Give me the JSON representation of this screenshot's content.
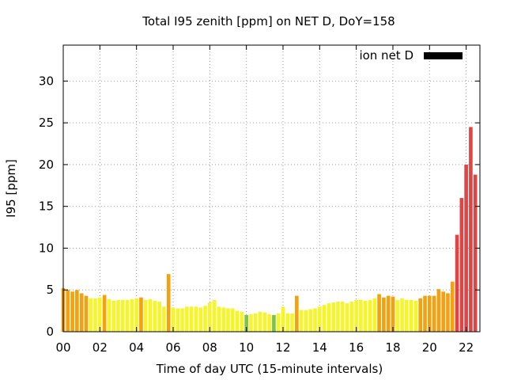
{
  "chart_data": {
    "type": "bar",
    "title": "Total I95 zenith [ppm] on NET D, DoY=158",
    "xlabel": "Time of day UTC (15-minute intervals)",
    "ylabel": "I95 [ppm]",
    "xlim": [
      0,
      22.75
    ],
    "ylim": [
      0,
      34.3
    ],
    "x_ticks": [
      "00",
      "02",
      "04",
      "06",
      "08",
      "10",
      "12",
      "14",
      "16",
      "18",
      "20",
      "22"
    ],
    "x_tick_values": [
      0,
      2,
      4,
      6,
      8,
      10,
      12,
      14,
      16,
      18,
      20,
      22
    ],
    "y_ticks": [
      0,
      5,
      10,
      15,
      20,
      25,
      30
    ],
    "grid": true,
    "legend_position": "top-right",
    "interval_hours": 0.25,
    "colors": {
      "green": "#7cc444",
      "yellow": "#f5f52a",
      "orange": "#f5a00f",
      "red": "#e04545",
      "legend": "#000000"
    },
    "series": [
      {
        "name": "ion net D",
        "values": [
          5.2,
          5.0,
          4.8,
          5.0,
          4.6,
          4.3,
          4.0,
          4.0,
          4.1,
          4.4,
          3.9,
          3.7,
          3.8,
          3.8,
          3.8,
          3.9,
          4.0,
          4.1,
          3.8,
          3.9,
          3.7,
          3.6,
          3.0,
          6.9,
          2.9,
          2.8,
          2.8,
          3.0,
          3.0,
          3.0,
          2.9,
          3.1,
          3.5,
          3.8,
          3.0,
          2.9,
          2.8,
          2.8,
          2.5,
          2.4,
          2.0,
          2.1,
          2.2,
          2.4,
          2.3,
          2.1,
          2.0,
          2.2,
          3.0,
          2.2,
          2.2,
          4.3,
          2.6,
          2.6,
          2.7,
          2.8,
          3.0,
          3.2,
          3.4,
          3.5,
          3.6,
          3.6,
          3.4,
          3.6,
          3.8,
          3.8,
          3.7,
          3.8,
          4.0,
          4.5,
          4.1,
          4.3,
          4.2,
          3.8,
          4.0,
          3.8,
          3.8,
          3.7,
          4.0,
          4.3,
          4.3,
          4.3,
          5.1,
          4.8,
          4.6,
          6.0,
          11.6,
          16.0,
          20.0,
          24.5,
          18.8
        ],
        "colors": [
          "orange",
          "orange",
          "orange",
          "orange",
          "orange",
          "orange",
          "yellow",
          "yellow",
          "yellow",
          "orange",
          "yellow",
          "yellow",
          "yellow",
          "yellow",
          "yellow",
          "yellow",
          "yellow",
          "orange",
          "yellow",
          "yellow",
          "yellow",
          "yellow",
          "yellow",
          "orange",
          "yellow",
          "yellow",
          "yellow",
          "yellow",
          "yellow",
          "yellow",
          "yellow",
          "yellow",
          "yellow",
          "yellow",
          "yellow",
          "yellow",
          "yellow",
          "yellow",
          "yellow",
          "yellow",
          "green",
          "yellow",
          "yellow",
          "yellow",
          "yellow",
          "yellow",
          "green",
          "yellow",
          "yellow",
          "yellow",
          "yellow",
          "orange",
          "yellow",
          "yellow",
          "yellow",
          "yellow",
          "yellow",
          "yellow",
          "yellow",
          "yellow",
          "yellow",
          "yellow",
          "yellow",
          "yellow",
          "yellow",
          "yellow",
          "yellow",
          "yellow",
          "yellow",
          "orange",
          "orange",
          "orange",
          "orange",
          "yellow",
          "yellow",
          "yellow",
          "yellow",
          "yellow",
          "orange",
          "orange",
          "orange",
          "orange",
          "orange",
          "orange",
          "orange",
          "orange",
          "red",
          "red",
          "red",
          "red",
          "red"
        ]
      }
    ]
  }
}
